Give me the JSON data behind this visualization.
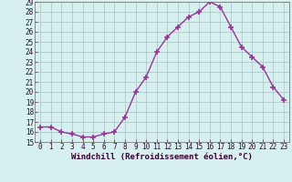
{
  "hours": [
    0,
    1,
    2,
    3,
    4,
    5,
    6,
    7,
    8,
    9,
    10,
    11,
    12,
    13,
    14,
    15,
    16,
    17,
    18,
    19,
    20,
    21,
    22,
    23
  ],
  "values": [
    16.5,
    16.5,
    16.0,
    15.8,
    15.5,
    15.5,
    15.8,
    16.0,
    17.5,
    20.0,
    21.5,
    24.0,
    25.5,
    26.5,
    27.5,
    28.0,
    29.0,
    28.5,
    26.5,
    24.5,
    23.5,
    22.5,
    20.5,
    19.2
  ],
  "ylim": [
    15,
    29
  ],
  "xlim_min": -0.5,
  "xlim_max": 23.5,
  "yticks": [
    15,
    16,
    17,
    18,
    19,
    20,
    21,
    22,
    23,
    24,
    25,
    26,
    27,
    28,
    29
  ],
  "xticks": [
    0,
    1,
    2,
    3,
    4,
    5,
    6,
    7,
    8,
    9,
    10,
    11,
    12,
    13,
    14,
    15,
    16,
    17,
    18,
    19,
    20,
    21,
    22,
    23
  ],
  "line_color": "#993399",
  "marker_color": "#993399",
  "bg_color": "#d6f0f0",
  "grid_color": "#b0c8c8",
  "xlabel": "Windchill (Refroidissement éolien,°C)",
  "xlabel_fontsize": 6.5,
  "tick_fontsize": 5.5,
  "line_width": 1.0,
  "marker_size": 4
}
